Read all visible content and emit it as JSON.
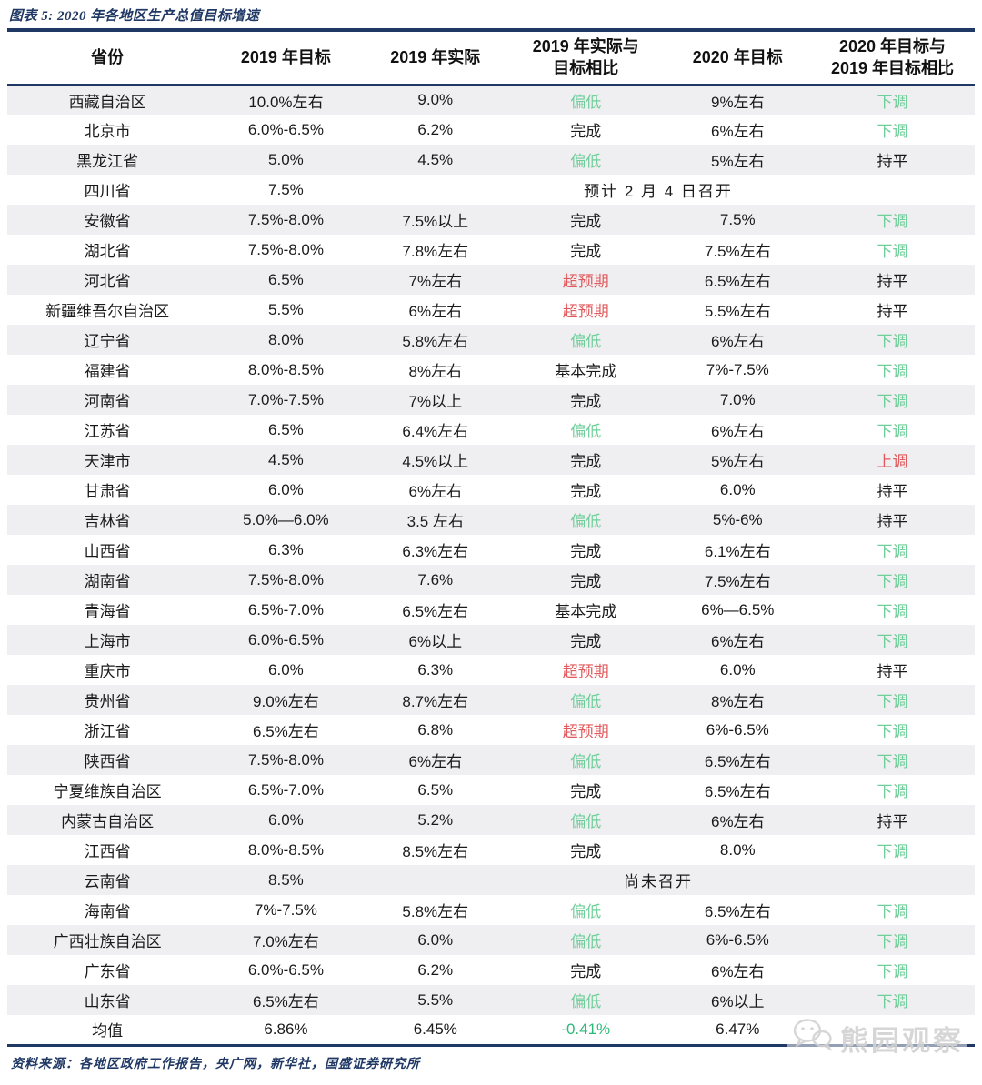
{
  "source_note": "资料来源：各地区政府工作报告，央广网，新华社，国盛证券研究所",
  "watermark_text": "熊园观察",
  "colors": {
    "navy": "#1f3864",
    "green_label": "#6fce9a",
    "green_strong": "#2fb87a",
    "red_label": "#e0595c",
    "row_alternate_bg": "#efeff1",
    "watermark_gray": "#d4d4d4"
  },
  "chart_data": {
    "type": "table",
    "title": "图表 5: 2020 年各地区生产总值目标增速",
    "columns": [
      "省份",
      "2019 年目标",
      "2019 年实际",
      "2019 年实际与\n目标相比",
      "2020 年目标",
      "2020 年目标与\n2019 年目标相比"
    ],
    "rows": [
      {
        "province": "西藏自治区",
        "target_2019": "10.0%左右",
        "actual_2019": "9.0%",
        "vs_target": "偏低",
        "vs_color": "green",
        "target_2020": "9%左右",
        "change": "下调",
        "change_color": "green"
      },
      {
        "province": "北京市",
        "target_2019": "6.0%-6.5%",
        "actual_2019": "6.2%",
        "vs_target": "完成",
        "vs_color": "black",
        "target_2020": "6%左右",
        "change": "下调",
        "change_color": "green"
      },
      {
        "province": "黑龙江省",
        "target_2019": "5.0%",
        "actual_2019": "4.5%",
        "vs_target": "偏低",
        "vs_color": "green",
        "target_2020": "5%左右",
        "change": "持平",
        "change_color": "black"
      },
      {
        "province": "四川省",
        "target_2019": "7.5%",
        "note": "预计 2 月 4 日召开"
      },
      {
        "province": "安徽省",
        "target_2019": "7.5%-8.0%",
        "actual_2019": "7.5%以上",
        "vs_target": "完成",
        "vs_color": "black",
        "target_2020": "7.5%",
        "change": "下调",
        "change_color": "green"
      },
      {
        "province": "湖北省",
        "target_2019": "7.5%-8.0%",
        "actual_2019": "7.8%左右",
        "vs_target": "完成",
        "vs_color": "black",
        "target_2020": "7.5%左右",
        "change": "下调",
        "change_color": "green"
      },
      {
        "province": "河北省",
        "target_2019": "6.5%",
        "actual_2019": "7%左右",
        "vs_target": "超预期",
        "vs_color": "red",
        "target_2020": "6.5%左右",
        "change": "持平",
        "change_color": "black"
      },
      {
        "province": "新疆维吾尔自治区",
        "target_2019": "5.5%",
        "actual_2019": "6%左右",
        "vs_target": "超预期",
        "vs_color": "red",
        "target_2020": "5.5%左右",
        "change": "持平",
        "change_color": "black"
      },
      {
        "province": "辽宁省",
        "target_2019": "8.0%",
        "actual_2019": "5.8%左右",
        "vs_target": "偏低",
        "vs_color": "green",
        "target_2020": "6%左右",
        "change": "下调",
        "change_color": "green"
      },
      {
        "province": "福建省",
        "target_2019": "8.0%-8.5%",
        "actual_2019": "8%左右",
        "vs_target": "基本完成",
        "vs_color": "black",
        "target_2020": "7%-7.5%",
        "change": "下调",
        "change_color": "green"
      },
      {
        "province": "河南省",
        "target_2019": "7.0%-7.5%",
        "actual_2019": "7%以上",
        "vs_target": "完成",
        "vs_color": "black",
        "target_2020": "7.0%",
        "change": "下调",
        "change_color": "green"
      },
      {
        "province": "江苏省",
        "target_2019": "6.5%",
        "actual_2019": "6.4%左右",
        "vs_target": "偏低",
        "vs_color": "green",
        "target_2020": "6%左右",
        "change": "下调",
        "change_color": "green"
      },
      {
        "province": "天津市",
        "target_2019": "4.5%",
        "actual_2019": "4.5%以上",
        "vs_target": "完成",
        "vs_color": "black",
        "target_2020": "5%左右",
        "change": "上调",
        "change_color": "red"
      },
      {
        "province": "甘肃省",
        "target_2019": "6.0%",
        "actual_2019": "6%左右",
        "vs_target": "完成",
        "vs_color": "black",
        "target_2020": "6.0%",
        "change": "持平",
        "change_color": "black"
      },
      {
        "province": "吉林省",
        "target_2019": "5.0%—6.0%",
        "actual_2019": "3.5 左右",
        "vs_target": "偏低",
        "vs_color": "green",
        "target_2020": "5%-6%",
        "change": "持平",
        "change_color": "black"
      },
      {
        "province": "山西省",
        "target_2019": "6.3%",
        "actual_2019": "6.3%左右",
        "vs_target": "完成",
        "vs_color": "black",
        "target_2020": "6.1%左右",
        "change": "下调",
        "change_color": "green"
      },
      {
        "province": "湖南省",
        "target_2019": "7.5%-8.0%",
        "actual_2019": "7.6%",
        "vs_target": "完成",
        "vs_color": "black",
        "target_2020": "7.5%左右",
        "change": "下调",
        "change_color": "green"
      },
      {
        "province": "青海省",
        "target_2019": "6.5%-7.0%",
        "actual_2019": "6.5%左右",
        "vs_target": "基本完成",
        "vs_color": "black",
        "target_2020": "6%—6.5%",
        "change": "下调",
        "change_color": "green"
      },
      {
        "province": "上海市",
        "target_2019": "6.0%-6.5%",
        "actual_2019": "6%以上",
        "vs_target": "完成",
        "vs_color": "black",
        "target_2020": "6%左右",
        "change": "下调",
        "change_color": "green"
      },
      {
        "province": "重庆市",
        "target_2019": "6.0%",
        "actual_2019": "6.3%",
        "vs_target": "超预期",
        "vs_color": "red",
        "target_2020": "6.0%",
        "change": "持平",
        "change_color": "black"
      },
      {
        "province": "贵州省",
        "target_2019": "9.0%左右",
        "actual_2019": "8.7%左右",
        "vs_target": "偏低",
        "vs_color": "green",
        "target_2020": "8%左右",
        "change": "下调",
        "change_color": "green"
      },
      {
        "province": "浙江省",
        "target_2019": "6.5%左右",
        "actual_2019": "6.8%",
        "vs_target": "超预期",
        "vs_color": "red",
        "target_2020": "6%-6.5%",
        "change": "下调",
        "change_color": "green"
      },
      {
        "province": "陕西省",
        "target_2019": "7.5%-8.0%",
        "actual_2019": "6%左右",
        "vs_target": "偏低",
        "vs_color": "green",
        "target_2020": "6.5%左右",
        "change": "下调",
        "change_color": "green"
      },
      {
        "province": "宁夏维族自治区",
        "target_2019": "6.5%-7.0%",
        "actual_2019": "6.5%",
        "vs_target": "完成",
        "vs_color": "black",
        "target_2020": "6.5%左右",
        "change": "下调",
        "change_color": "green"
      },
      {
        "province": "内蒙古自治区",
        "target_2019": "6.0%",
        "actual_2019": "5.2%",
        "vs_target": "偏低",
        "vs_color": "green",
        "target_2020": "6%左右",
        "change": "持平",
        "change_color": "black"
      },
      {
        "province": "江西省",
        "target_2019": "8.0%-8.5%",
        "actual_2019": "8.5%左右",
        "vs_target": "完成",
        "vs_color": "black",
        "target_2020": "8.0%",
        "change": "下调",
        "change_color": "green"
      },
      {
        "province": "云南省",
        "target_2019": "8.5%",
        "note": "尚未召开"
      },
      {
        "province": "海南省",
        "target_2019": "7%-7.5%",
        "actual_2019": "5.8%左右",
        "vs_target": "偏低",
        "vs_color": "green",
        "target_2020": "6.5%左右",
        "change": "下调",
        "change_color": "green"
      },
      {
        "province": "广西壮族自治区",
        "target_2019": "7.0%左右",
        "actual_2019": "6.0%",
        "vs_target": "偏低",
        "vs_color": "green",
        "target_2020": "6%-6.5%",
        "change": "下调",
        "change_color": "green"
      },
      {
        "province": "广东省",
        "target_2019": "6.0%-6.5%",
        "actual_2019": "6.2%",
        "vs_target": "完成",
        "vs_color": "black",
        "target_2020": "6%左右",
        "change": "下调",
        "change_color": "green"
      },
      {
        "province": "山东省",
        "target_2019": "6.5%左右",
        "actual_2019": "5.5%",
        "vs_target": "偏低",
        "vs_color": "green",
        "target_2020": "6%以上",
        "change": "下调",
        "change_color": "green"
      },
      {
        "province": "均值",
        "target_2019": "6.86%",
        "actual_2019": "6.45%",
        "vs_target": "-0.41%",
        "vs_color": "green_strong",
        "target_2020": "6.47%",
        "change": "",
        "change_color": "black",
        "is_mean": true
      }
    ]
  }
}
